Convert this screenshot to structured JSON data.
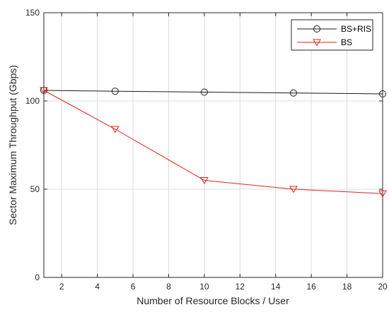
{
  "chart_data": {
    "type": "line",
    "title": "",
    "xlabel": "Number of Resource Blocks / User",
    "ylabel": "Sector Maximum Throughput (Gbps)",
    "xlim": [
      1,
      20
    ],
    "ylim": [
      0,
      150
    ],
    "xticks": [
      2,
      4,
      6,
      8,
      10,
      12,
      14,
      16,
      18,
      20
    ],
    "yticks": [
      0,
      50,
      100,
      150
    ],
    "grid": true,
    "legend_position": "top-right",
    "x": [
      1,
      5,
      10,
      15,
      20
    ],
    "series": [
      {
        "name": "BS+RIS",
        "marker": "circle",
        "color": "#1a1a1a",
        "values": [
          106,
          105.5,
          105,
          104.5,
          104
        ]
      },
      {
        "name": "BS",
        "marker": "triangle-down",
        "color": "#e0211f",
        "values": [
          106,
          84,
          55,
          50,
          47.5
        ]
      }
    ]
  }
}
